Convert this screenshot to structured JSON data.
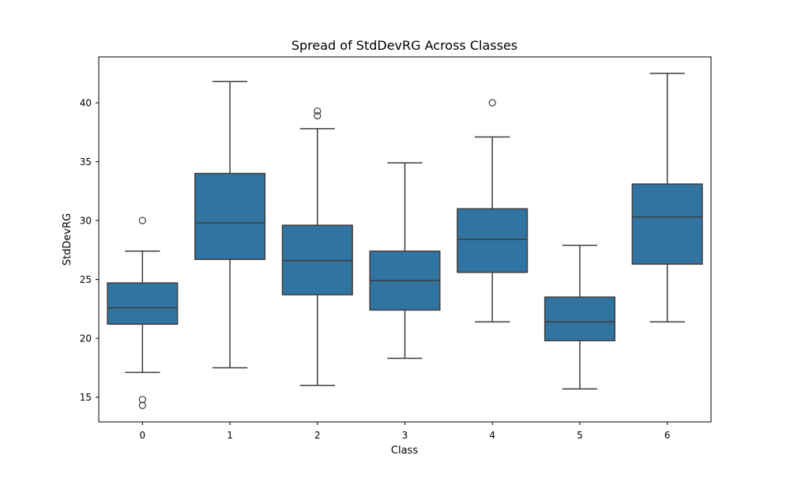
{
  "chart_data": {
    "type": "box",
    "title": "Spread of StdDevRG Across Classes",
    "xlabel": "Class",
    "ylabel": "StdDevRG",
    "categories": [
      "0",
      "1",
      "2",
      "3",
      "4",
      "5",
      "6"
    ],
    "ylim": [
      12.9,
      43.9
    ],
    "yticks": [
      15,
      20,
      25,
      30,
      35,
      40
    ],
    "grid": false,
    "legend": "none",
    "colors": {
      "box_fill": "#3274a1",
      "line": "#3c3c3c",
      "frame": "#000000"
    },
    "boxes": [
      {
        "category": "0",
        "whisker_low": 17.1,
        "q1": 21.2,
        "median": 22.6,
        "q3": 24.7,
        "whisker_high": 27.4,
        "outliers": [
          30.0,
          14.8,
          14.3
        ]
      },
      {
        "category": "1",
        "whisker_low": 17.5,
        "q1": 26.7,
        "median": 29.8,
        "q3": 34.0,
        "whisker_high": 41.8,
        "outliers": []
      },
      {
        "category": "2",
        "whisker_low": 16.0,
        "q1": 23.7,
        "median": 26.6,
        "q3": 29.6,
        "whisker_high": 37.8,
        "outliers": [
          39.3,
          38.9
        ]
      },
      {
        "category": "3",
        "whisker_low": 18.3,
        "q1": 22.4,
        "median": 24.9,
        "q3": 27.4,
        "whisker_high": 34.9,
        "outliers": []
      },
      {
        "category": "4",
        "whisker_low": 21.4,
        "q1": 25.6,
        "median": 28.4,
        "q3": 31.0,
        "whisker_high": 37.1,
        "outliers": [
          40.0
        ]
      },
      {
        "category": "5",
        "whisker_low": 15.7,
        "q1": 19.8,
        "median": 21.4,
        "q3": 23.5,
        "whisker_high": 27.9,
        "outliers": []
      },
      {
        "category": "6",
        "whisker_low": 21.4,
        "q1": 26.3,
        "median": 30.3,
        "q3": 33.1,
        "whisker_high": 42.5,
        "outliers": []
      }
    ]
  }
}
